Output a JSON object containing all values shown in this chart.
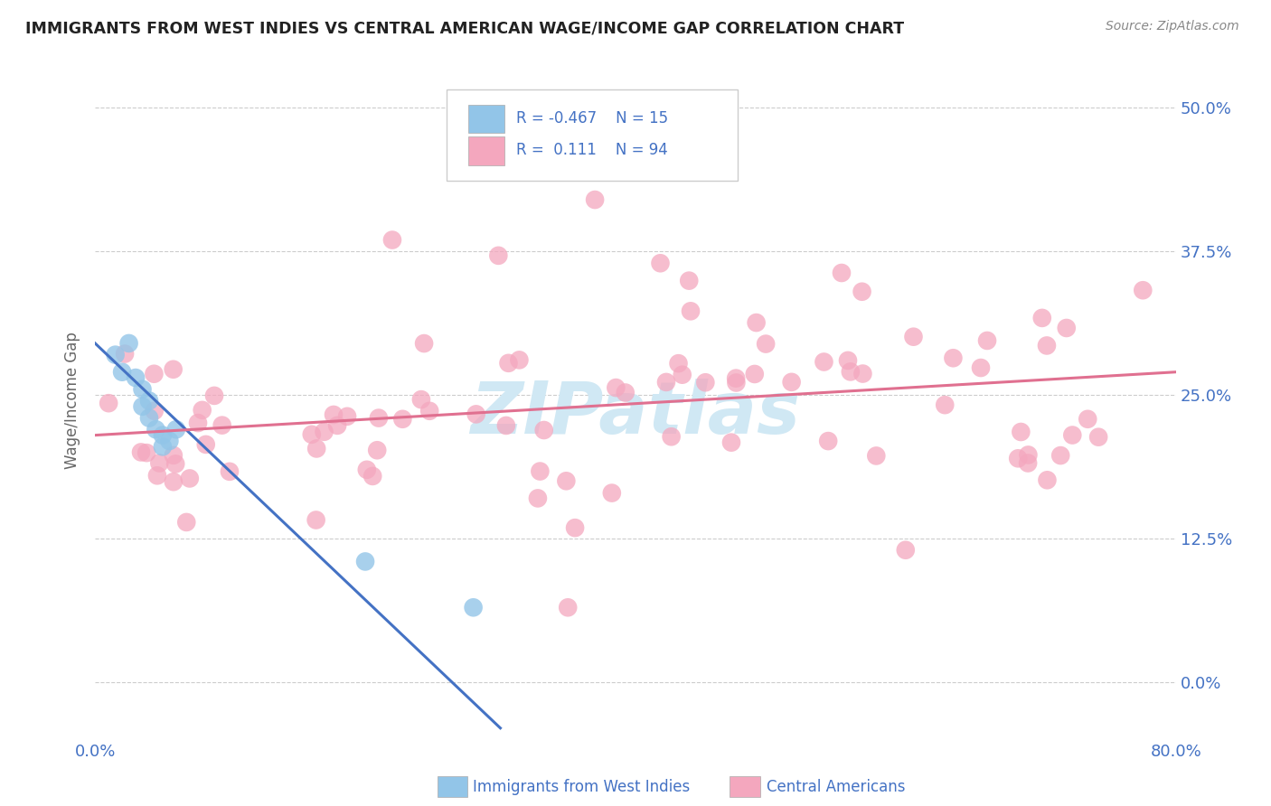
{
  "title": "IMMIGRANTS FROM WEST INDIES VS CENTRAL AMERICAN WAGE/INCOME GAP CORRELATION CHART",
  "source": "Source: ZipAtlas.com",
  "ylabel": "Wage/Income Gap",
  "ytick_values": [
    0.0,
    0.125,
    0.25,
    0.375,
    0.5
  ],
  "ytick_labels": [
    "0.0%",
    "12.5%",
    "25.0%",
    "37.5%",
    "50.0%"
  ],
  "xlim": [
    0.0,
    0.8
  ],
  "ylim": [
    -0.05,
    0.54
  ],
  "legend_label_1": "Immigrants from West Indies",
  "legend_label_2": "Central Americans",
  "R1": -0.467,
  "N1": 15,
  "R2": 0.111,
  "N2": 94,
  "color_blue": "#92C5E8",
  "color_pink": "#F4A7BE",
  "color_blue_dark": "#4472C4",
  "color_pink_dark": "#E07090",
  "background_color": "#FFFFFF",
  "grid_color": "#CCCCCC",
  "watermark_color": "#D0E8F4",
  "blue_points_x": [
    0.015,
    0.02,
    0.025,
    0.03,
    0.035,
    0.035,
    0.04,
    0.04,
    0.045,
    0.05,
    0.05,
    0.055,
    0.06,
    0.2,
    0.28
  ],
  "blue_points_y": [
    0.285,
    0.27,
    0.295,
    0.265,
    0.255,
    0.24,
    0.245,
    0.23,
    0.22,
    0.215,
    0.205,
    0.21,
    0.22,
    0.105,
    0.065
  ],
  "blue_trendline": [
    0.0,
    0.295,
    0.3,
    -0.04
  ],
  "pink_trendline": [
    0.0,
    0.215,
    0.8,
    0.27
  ],
  "pink_seed": 42
}
